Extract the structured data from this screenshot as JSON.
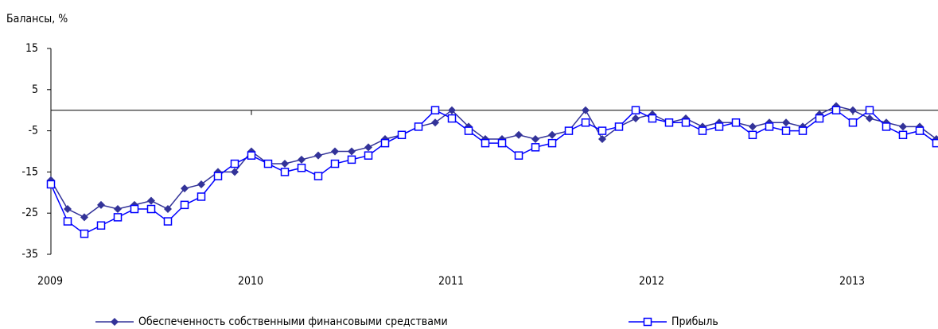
{
  "chart_data": {
    "type": "line",
    "title": "Балансы, %",
    "categories": [
      "2009",
      null,
      null,
      null,
      null,
      null,
      null,
      null,
      null,
      null,
      null,
      null,
      "2010",
      null,
      null,
      null,
      null,
      null,
      null,
      null,
      null,
      null,
      null,
      null,
      "2011",
      null,
      null,
      null,
      null,
      null,
      null,
      null,
      null,
      null,
      null,
      null,
      "2012",
      null,
      null,
      null,
      null,
      null,
      null,
      null,
      null,
      null,
      null,
      null,
      "2013",
      null,
      null,
      null,
      null,
      null
    ],
    "series": [
      {
        "name": "Обеспеченность собственными финансовыми средствами",
        "color": "#333399",
        "marker": "diamond",
        "values": [
          -17,
          -24,
          -26,
          -23,
          -24,
          -23,
          -22,
          -24,
          -19,
          -18,
          -15,
          -15,
          -10,
          -13,
          -13,
          -12,
          -11,
          -10,
          -10,
          -9,
          -7,
          -6,
          -4,
          -3,
          0,
          -4,
          -7,
          -7,
          -6,
          -7,
          -6,
          -5,
          0,
          -7,
          -4,
          -2,
          -1,
          -3,
          -2,
          -4,
          -3,
          -3,
          -4,
          -3,
          -3,
          -4,
          -1,
          1,
          0,
          -2,
          -3,
          -4,
          -4,
          -7
        ]
      },
      {
        "name": "Прибыль",
        "color": "#0000ff",
        "marker": "square",
        "values": [
          -18,
          -27,
          -30,
          -28,
          -26,
          -24,
          -24,
          -27,
          -23,
          -21,
          -16,
          -13,
          -11,
          -13,
          -15,
          -14,
          -16,
          -13,
          -12,
          -11,
          -8,
          -6,
          -4,
          0,
          -2,
          -5,
          -8,
          -8,
          -11,
          -9,
          -8,
          -5,
          -3,
          -5,
          -4,
          0,
          -2,
          -3,
          -3,
          -5,
          -4,
          -3,
          -6,
          -4,
          -5,
          -5,
          -2,
          0,
          -3,
          0,
          -4,
          -6,
          -5,
          -8
        ]
      }
    ],
    "ylim": [
      -35,
      15
    ],
    "yticks": [
      15,
      5,
      -5,
      -15,
      -25,
      -35
    ],
    "grid": false,
    "legend": "bottom"
  }
}
